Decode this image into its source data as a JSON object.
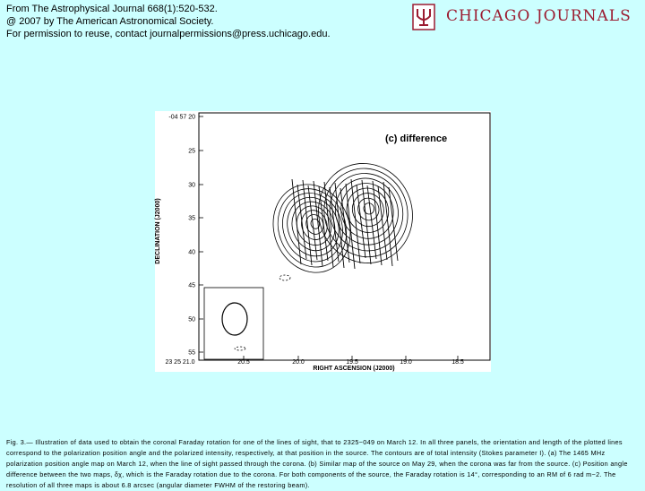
{
  "header": {
    "lines": [
      "From The Astrophysical Journal 668(1):520-532.",
      "@ 2007 by The American Astronomical Society.",
      "For permission to reuse, contact journalpermissions@press.uchicago.edu."
    ]
  },
  "logo": {
    "text": "CHICAGO JOURNALS"
  },
  "figure": {
    "panel_label": "(c) difference",
    "y_axis_label": "DECLINATION (J2000)",
    "x_axis_label": "RIGHT ASCENSION (J2000)",
    "y_ticks": [
      "-04 57 20",
      "25",
      "30",
      "35",
      "40",
      "45",
      "50",
      "55"
    ],
    "x_ticks": [
      "23 25 21.0",
      "20.5",
      "20.0",
      "19.5",
      "19.0",
      "18.5"
    ]
  },
  "caption": "Fig. 3.— Illustration of data used to obtain the coronal Faraday rotation for one of the lines of sight, that to 2325−049 on March 12. In all three panels, the orientation and length of the plotted lines correspond to the polarization position angle and the polarized intensity, respectively, at that position in the source. The contours are of total intensity (Stokes parameter I). (a) The 1465 MHz polarization position angle map on March 12, when the line of sight passed through the corona. (b) Similar map of the source on May 29, when the corona was far from the source. (c) Position angle difference between the two maps, δχ, which is the Faraday rotation due to the corona. For both components of the source, the Faraday rotation is 14°, corresponding to an RM of 6 rad m−2. The resolution of all three maps is about 6.8 arcsec (angular diameter FWHM of the restoring beam)."
}
